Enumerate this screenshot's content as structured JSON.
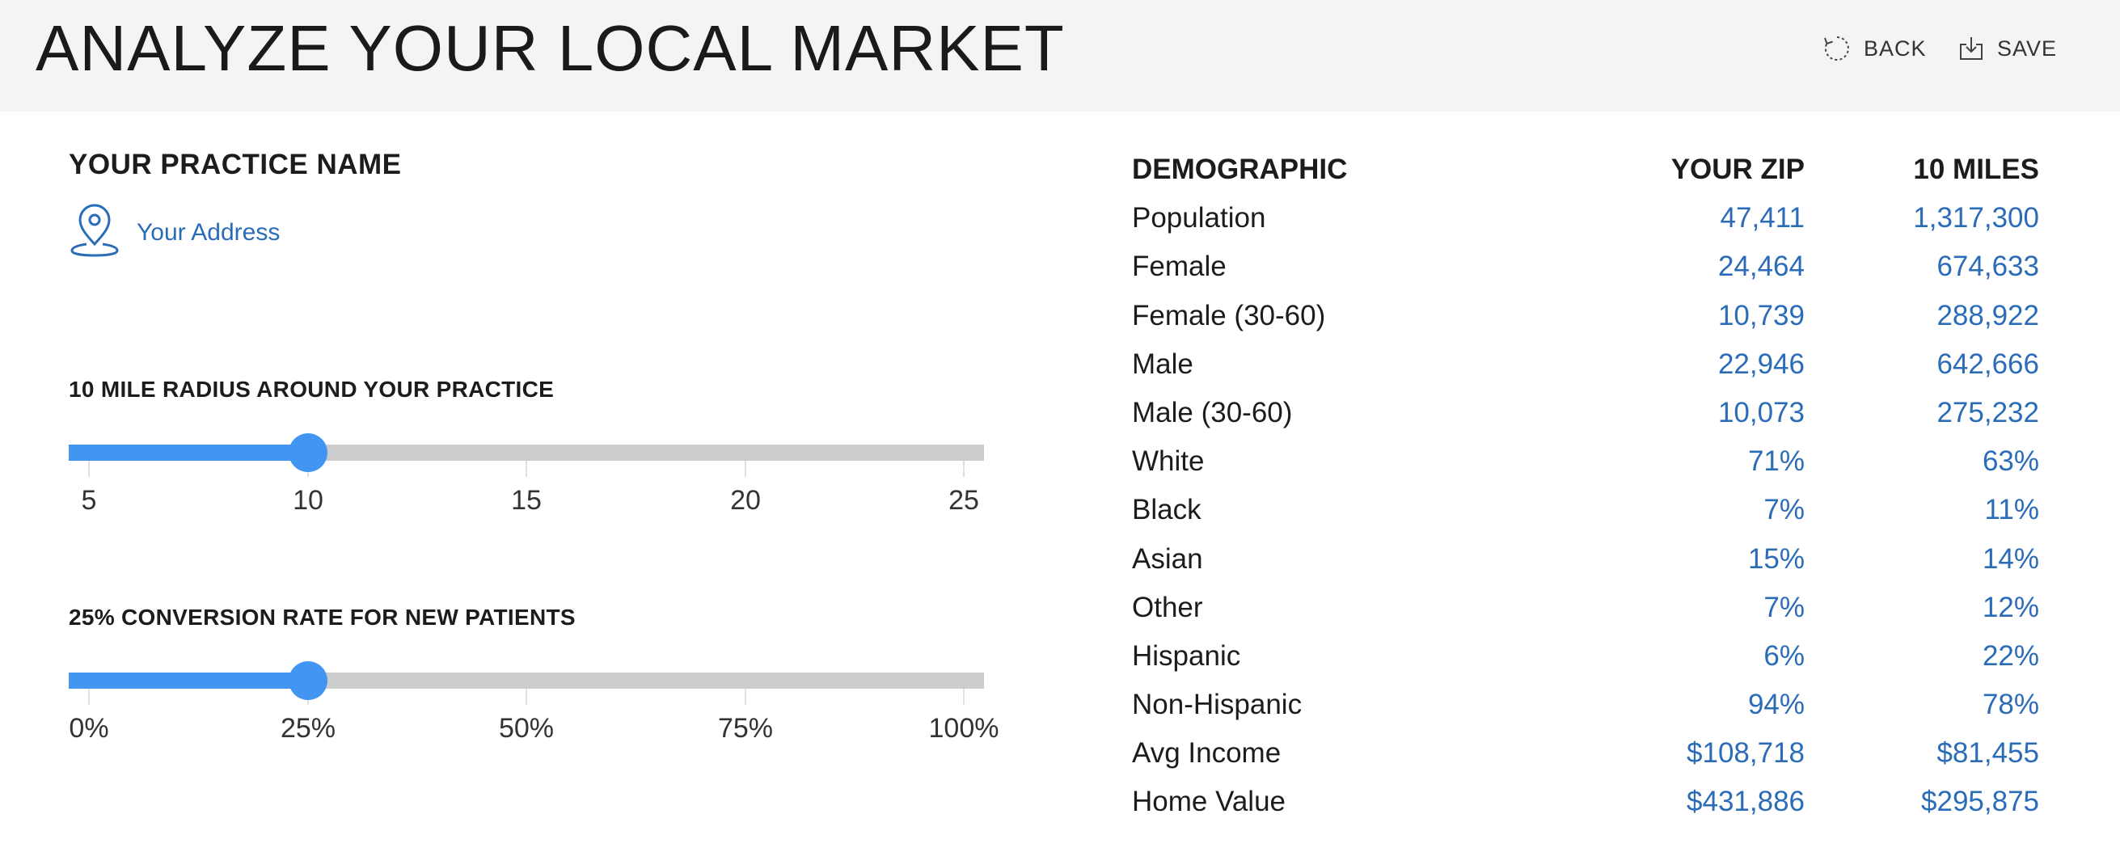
{
  "header": {
    "title": "ANALYZE YOUR LOCAL MARKET",
    "back_label": "BACK",
    "save_label": "SAVE",
    "back_icon": "refresh-icon",
    "save_icon": "download-icon"
  },
  "practice": {
    "name": "YOUR PRACTICE NAME",
    "address": "Your Address",
    "address_icon": "map-pin-icon"
  },
  "radius_slider": {
    "label": "10 MILE RADIUS AROUND YOUR PRACTICE",
    "ticks": [
      "5",
      "10",
      "15",
      "20",
      "25"
    ],
    "value": 10,
    "min": 5,
    "max": 25
  },
  "conversion_slider": {
    "label": "25% CONVERSION RATE FOR NEW PATIENTS",
    "ticks": [
      "0%",
      "25%",
      "50%",
      "75%",
      "100%"
    ],
    "value": 25,
    "min": 0,
    "max": 100
  },
  "demographics": {
    "headers": [
      "DEMOGRAPHIC",
      "YOUR ZIP",
      "10 MILES"
    ],
    "rows": [
      [
        "Population",
        "47,411",
        "1,317,300"
      ],
      [
        "Female",
        "24,464",
        "674,633"
      ],
      [
        "Female (30-60)",
        "10,739",
        "288,922"
      ],
      [
        "Male",
        "22,946",
        "642,666"
      ],
      [
        "Male (30-60)",
        "10,073",
        "275,232"
      ],
      [
        "White",
        "71%",
        "63%"
      ],
      [
        "Black",
        "7%",
        "11%"
      ],
      [
        "Asian",
        "15%",
        "14%"
      ],
      [
        "Other",
        "7%",
        "12%"
      ],
      [
        "Hispanic",
        "6%",
        "22%"
      ],
      [
        "Non-Hispanic",
        "94%",
        "78%"
      ],
      [
        "Avg Income",
        "$108,718",
        "$81,455"
      ],
      [
        "Home Value",
        "$431,886",
        "$295,875"
      ]
    ]
  },
  "colors": {
    "accent": "#4295f1",
    "link": "#2a6cb7",
    "header_bg": "#f4f4f4",
    "track": "#cccccc"
  }
}
